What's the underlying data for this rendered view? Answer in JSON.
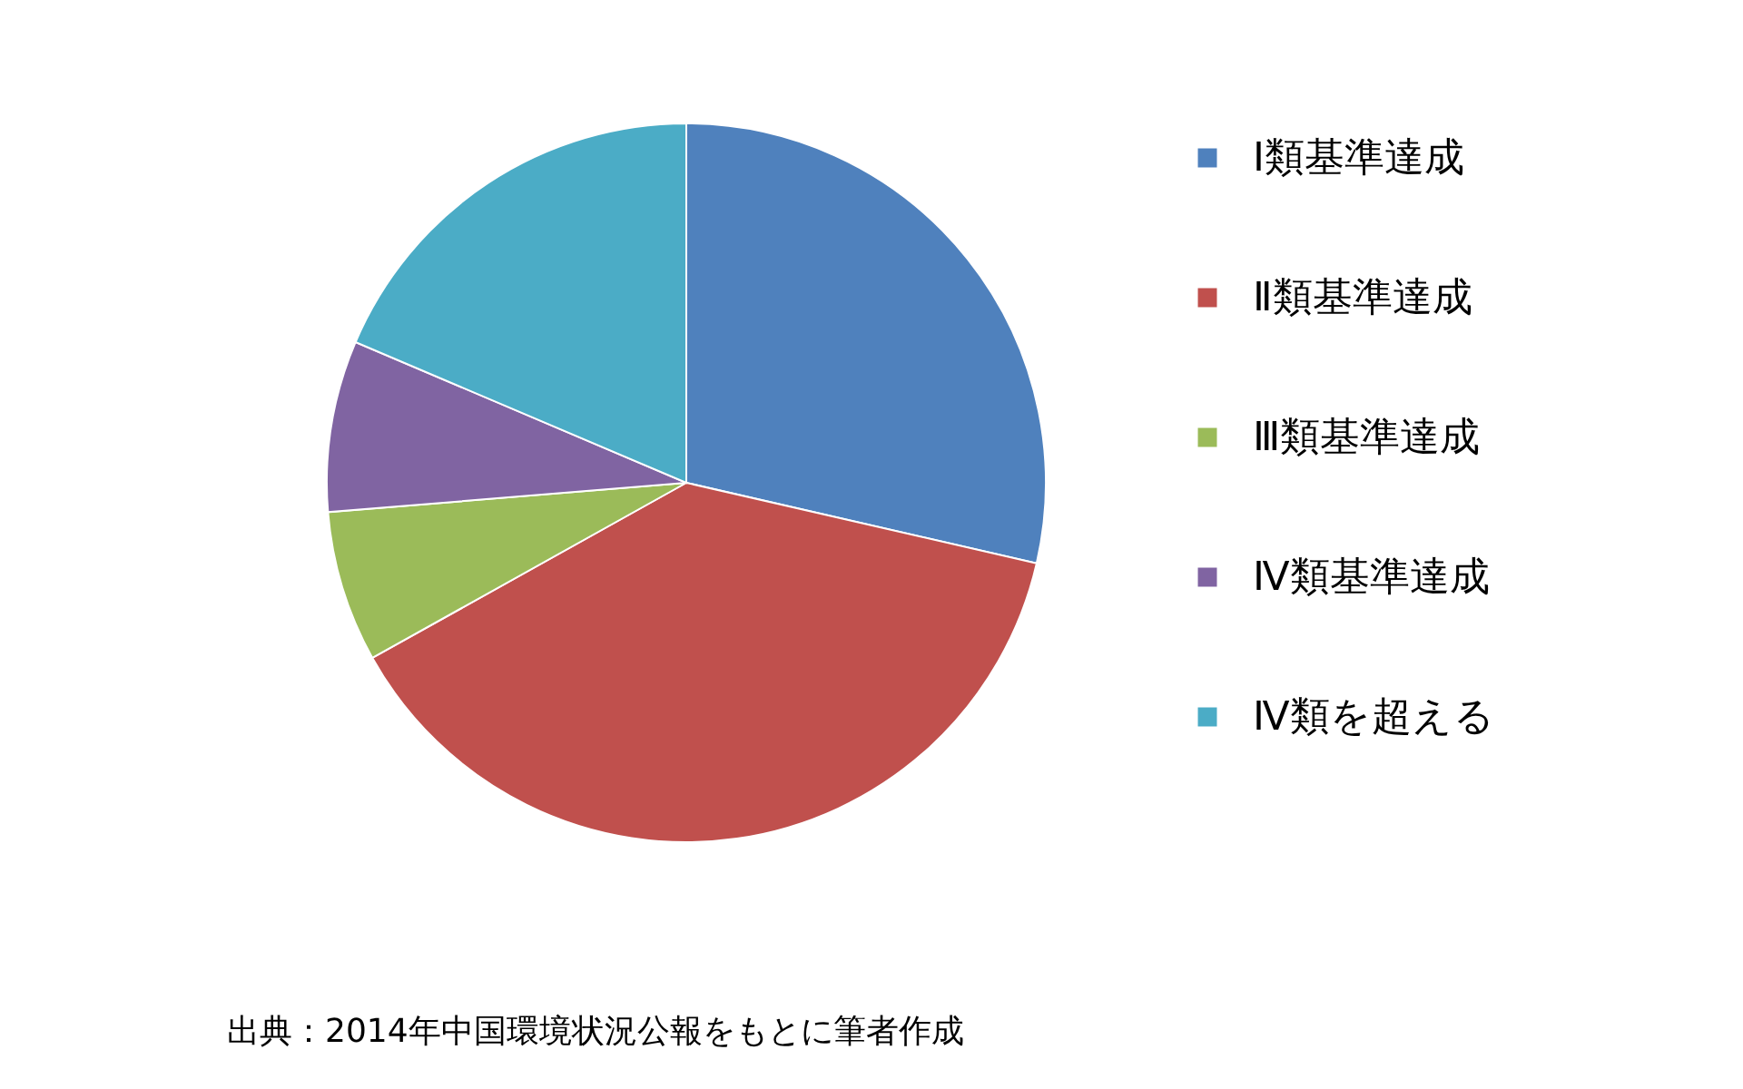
{
  "chart_data": {
    "type": "pie",
    "categories": [
      "Ⅰ類基準達成",
      "Ⅱ類基準達成",
      "Ⅲ類基準達成",
      "Ⅳ類基準達成",
      "Ⅳ類を超える"
    ],
    "values": [
      28.6,
      38.3,
      6.8,
      7.7,
      18.6
    ],
    "colors": [
      "#4f81bd",
      "#c0504d",
      "#9bbb59",
      "#8064a2",
      "#4bacc6"
    ],
    "legend": "right",
    "annotations": [
      "出典：2014年中国環境状況公報をもとに筆者作成"
    ]
  }
}
